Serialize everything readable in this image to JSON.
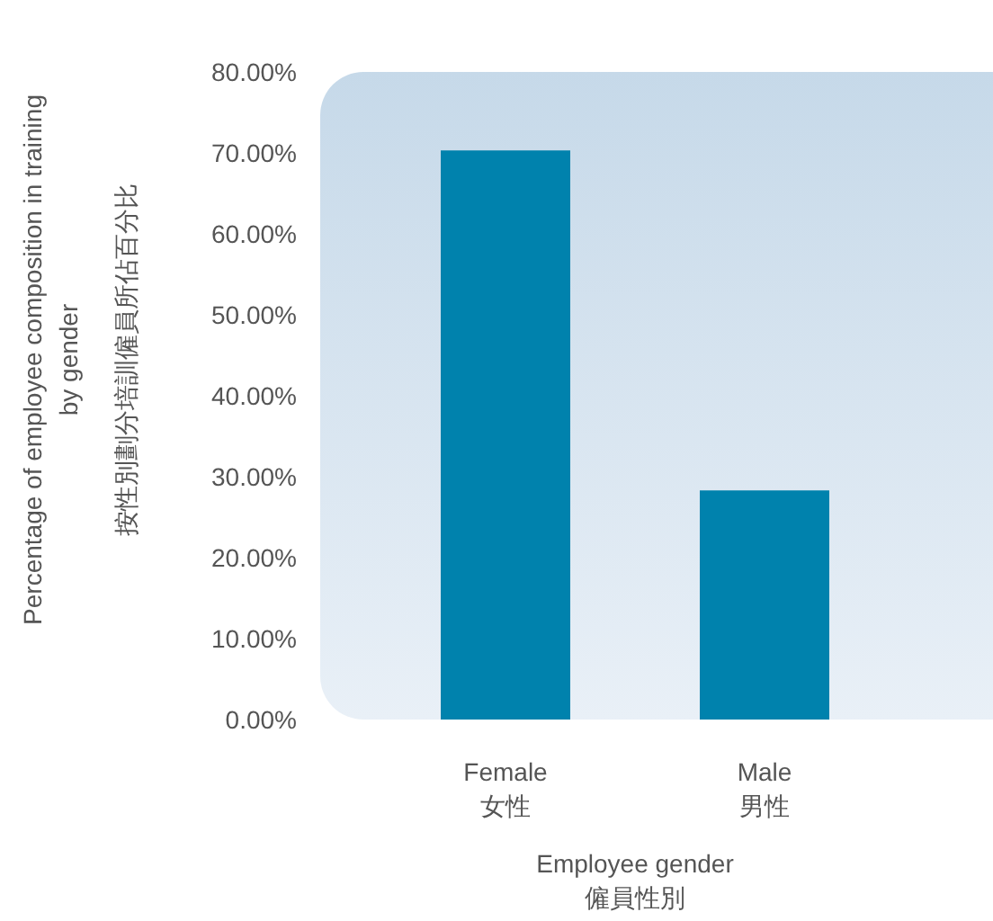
{
  "chart_data": {
    "type": "bar",
    "categories": [
      "Female\n女性",
      "Male\n男性"
    ],
    "values": [
      70.3,
      28.3
    ],
    "color": "#0082ad",
    "xlabel": "Employee gender\n僱員性別",
    "ylabel": "Percentage of employee composition in training\nby gender\n按性別劃分培訓僱員所佔百分比",
    "ylim": [
      0,
      80
    ],
    "yticks": [
      {
        "value": 0,
        "label": "0.00%"
      },
      {
        "value": 10,
        "label": "10.00%"
      },
      {
        "value": 20,
        "label": "20.00%"
      },
      {
        "value": 30,
        "label": "30.00%"
      },
      {
        "value": 40,
        "label": "40.00%"
      },
      {
        "value": 50,
        "label": "50.00%"
      },
      {
        "value": 60,
        "label": "60.00%"
      },
      {
        "value": 70,
        "label": "70.00%"
      },
      {
        "value": 80,
        "label": "80.00%"
      }
    ],
    "grid": false,
    "legend": false
  }
}
